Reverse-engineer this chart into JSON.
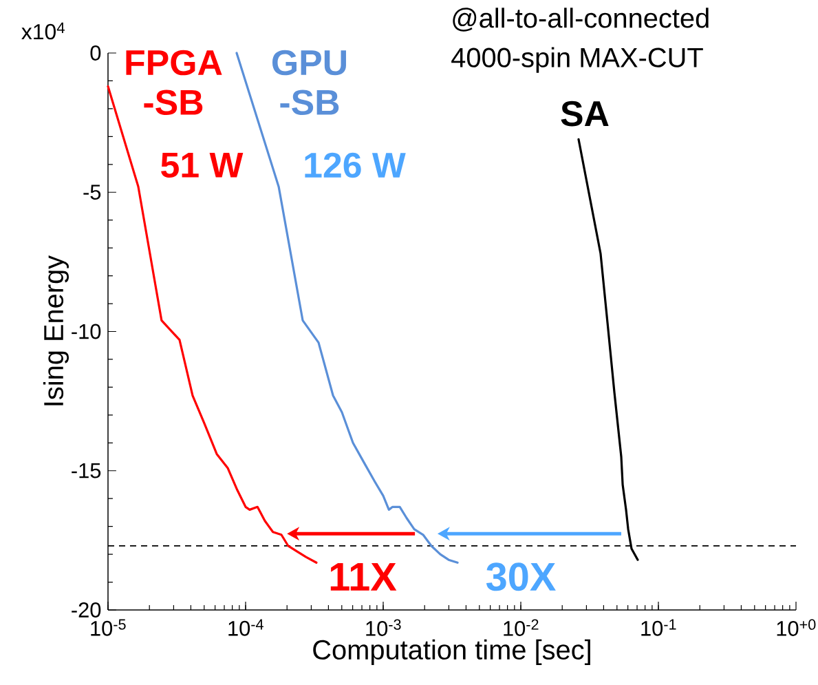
{
  "chart_data": {
    "type": "line",
    "title": "@all-to-all-connected",
    "subtitle": "4000-spin MAX-CUT",
    "xlabel": "Computation time [sec]",
    "ylabel": "Ising Energy",
    "log": "x",
    "xlim": [
      1e-05,
      1
    ],
    "xticks": [
      {
        "value": 1e-05,
        "label": "10$^{-5}$"
      },
      {
        "value": 0.0001,
        "label": "10$^{-4}$"
      },
      {
        "value": 0.001,
        "label": "10$^{-3}$"
      },
      {
        "value": 0.01,
        "label": "10$^{-2}$"
      },
      {
        "value": 0.1,
        "label": "10$^{-1}$"
      },
      {
        "value": 1,
        "label": "10$^{+0}$"
      }
    ],
    "ylim": [
      -20,
      0
    ],
    "yticks": [
      -20,
      -15,
      -10,
      -5,
      0
    ],
    "grid": false,
    "legend": false,
    "series": [
      {
        "name": "FPGA -SB",
        "color": "#ff0000",
        "x": [
          1e-05,
          1.66e-05,
          2.45e-05,
          3.31e-05,
          4.12e-05,
          5.01e-05,
          6.17e-05,
          7.41e-05,
          8.71e-05,
          0.0001,
          0.000107,
          0.000122,
          0.000138,
          0.000158,
          0.000182,
          0.000204,
          0.000237,
          0.000275,
          0.000327
        ],
        "values": [
          -1.2,
          -4.8,
          -9.6,
          -10.3,
          -12.3,
          -13.3,
          -14.4,
          -14.9,
          -15.7,
          -16.3,
          -16.4,
          -16.3,
          -16.8,
          -17.2,
          -17.3,
          -17.7,
          -17.9,
          -18.1,
          -18.3
        ]
      },
      {
        "name": "GPU -SB",
        "color": "#5a8fd8",
        "x": [
          8.61e-05,
          0.000174,
          0.00026,
          0.000339,
          0.000432,
          0.000501,
          0.000603,
          0.000724,
          0.000871,
          0.001,
          0.0011,
          0.00117,
          0.00132,
          0.00148,
          0.00168,
          0.00195,
          0.00224,
          0.0026,
          0.00299,
          0.00347
        ],
        "values": [
          0,
          -4.8,
          -9.6,
          -10.4,
          -12.3,
          -12.9,
          -14.0,
          -14.7,
          -15.4,
          -15.9,
          -16.4,
          -16.3,
          -16.3,
          -16.7,
          -17.1,
          -17.3,
          -17.7,
          -18.0,
          -18.2,
          -18.3
        ]
      },
      {
        "name": "SA",
        "color": "#000000",
        "x": [
          0.0263,
          0.038,
          0.0427,
          0.0479,
          0.0537,
          0.055,
          0.0582,
          0.0603,
          0.0638,
          0.0708
        ],
        "values": [
          -3.1,
          -7.2,
          -9.7,
          -12.2,
          -14.5,
          -15.5,
          -16.4,
          -17.1,
          -17.8,
          -18.2
        ]
      }
    ],
    "ref_lines": [
      {
        "axis": "y",
        "value": -17.7,
        "color": "#000000",
        "line_style": "dashed"
      }
    ],
    "annotations": [
      "x10$^{4}$",
      "51 W",
      "126 W",
      "11X",
      "30X"
    ]
  }
}
